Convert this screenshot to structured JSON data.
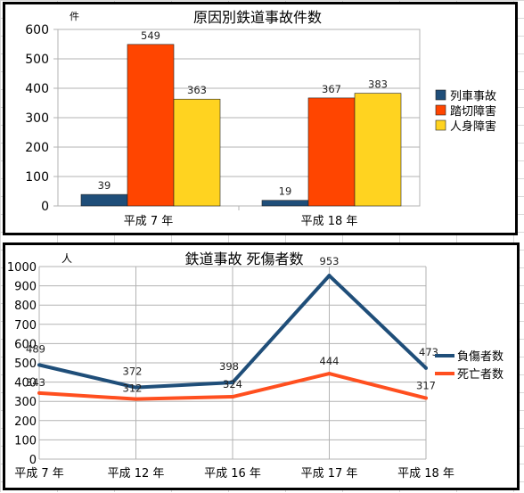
{
  "chart_data": [
    {
      "type": "bar",
      "title": "原因別鉄道事故件数",
      "ylabel": "件",
      "xlabel": "",
      "ylim": [
        0,
        600
      ],
      "ytick_step": 100,
      "grid": true,
      "legend_position": "right",
      "categories": [
        "平成 7 年",
        "平成 18 年"
      ],
      "series": [
        {
          "name": "列車事故",
          "color": "#1f4e79",
          "values": [
            39,
            19
          ]
        },
        {
          "name": "踏切障害",
          "color": "#ff4500",
          "values": [
            549,
            367
          ]
        },
        {
          "name": "人身障害",
          "color": "#ffd320",
          "values": [
            363,
            383
          ]
        }
      ]
    },
    {
      "type": "line",
      "title": "鉄道事故  死傷者数",
      "ylabel": "人",
      "xlabel": "",
      "ylim": [
        0,
        1000
      ],
      "ytick_step": 100,
      "grid": true,
      "legend_position": "right",
      "categories": [
        "平成 7 年",
        "平成 12 年",
        "平成 16 年",
        "平成 17 年",
        "平成 18 年"
      ],
      "series": [
        {
          "name": "負傷者数",
          "color": "#1f4e79",
          "values": [
            489,
            372,
            398,
            953,
            473
          ]
        },
        {
          "name": "死亡者数",
          "color": "#ff4f1f",
          "values": [
            343,
            312,
            324,
            444,
            317
          ]
        }
      ]
    }
  ]
}
